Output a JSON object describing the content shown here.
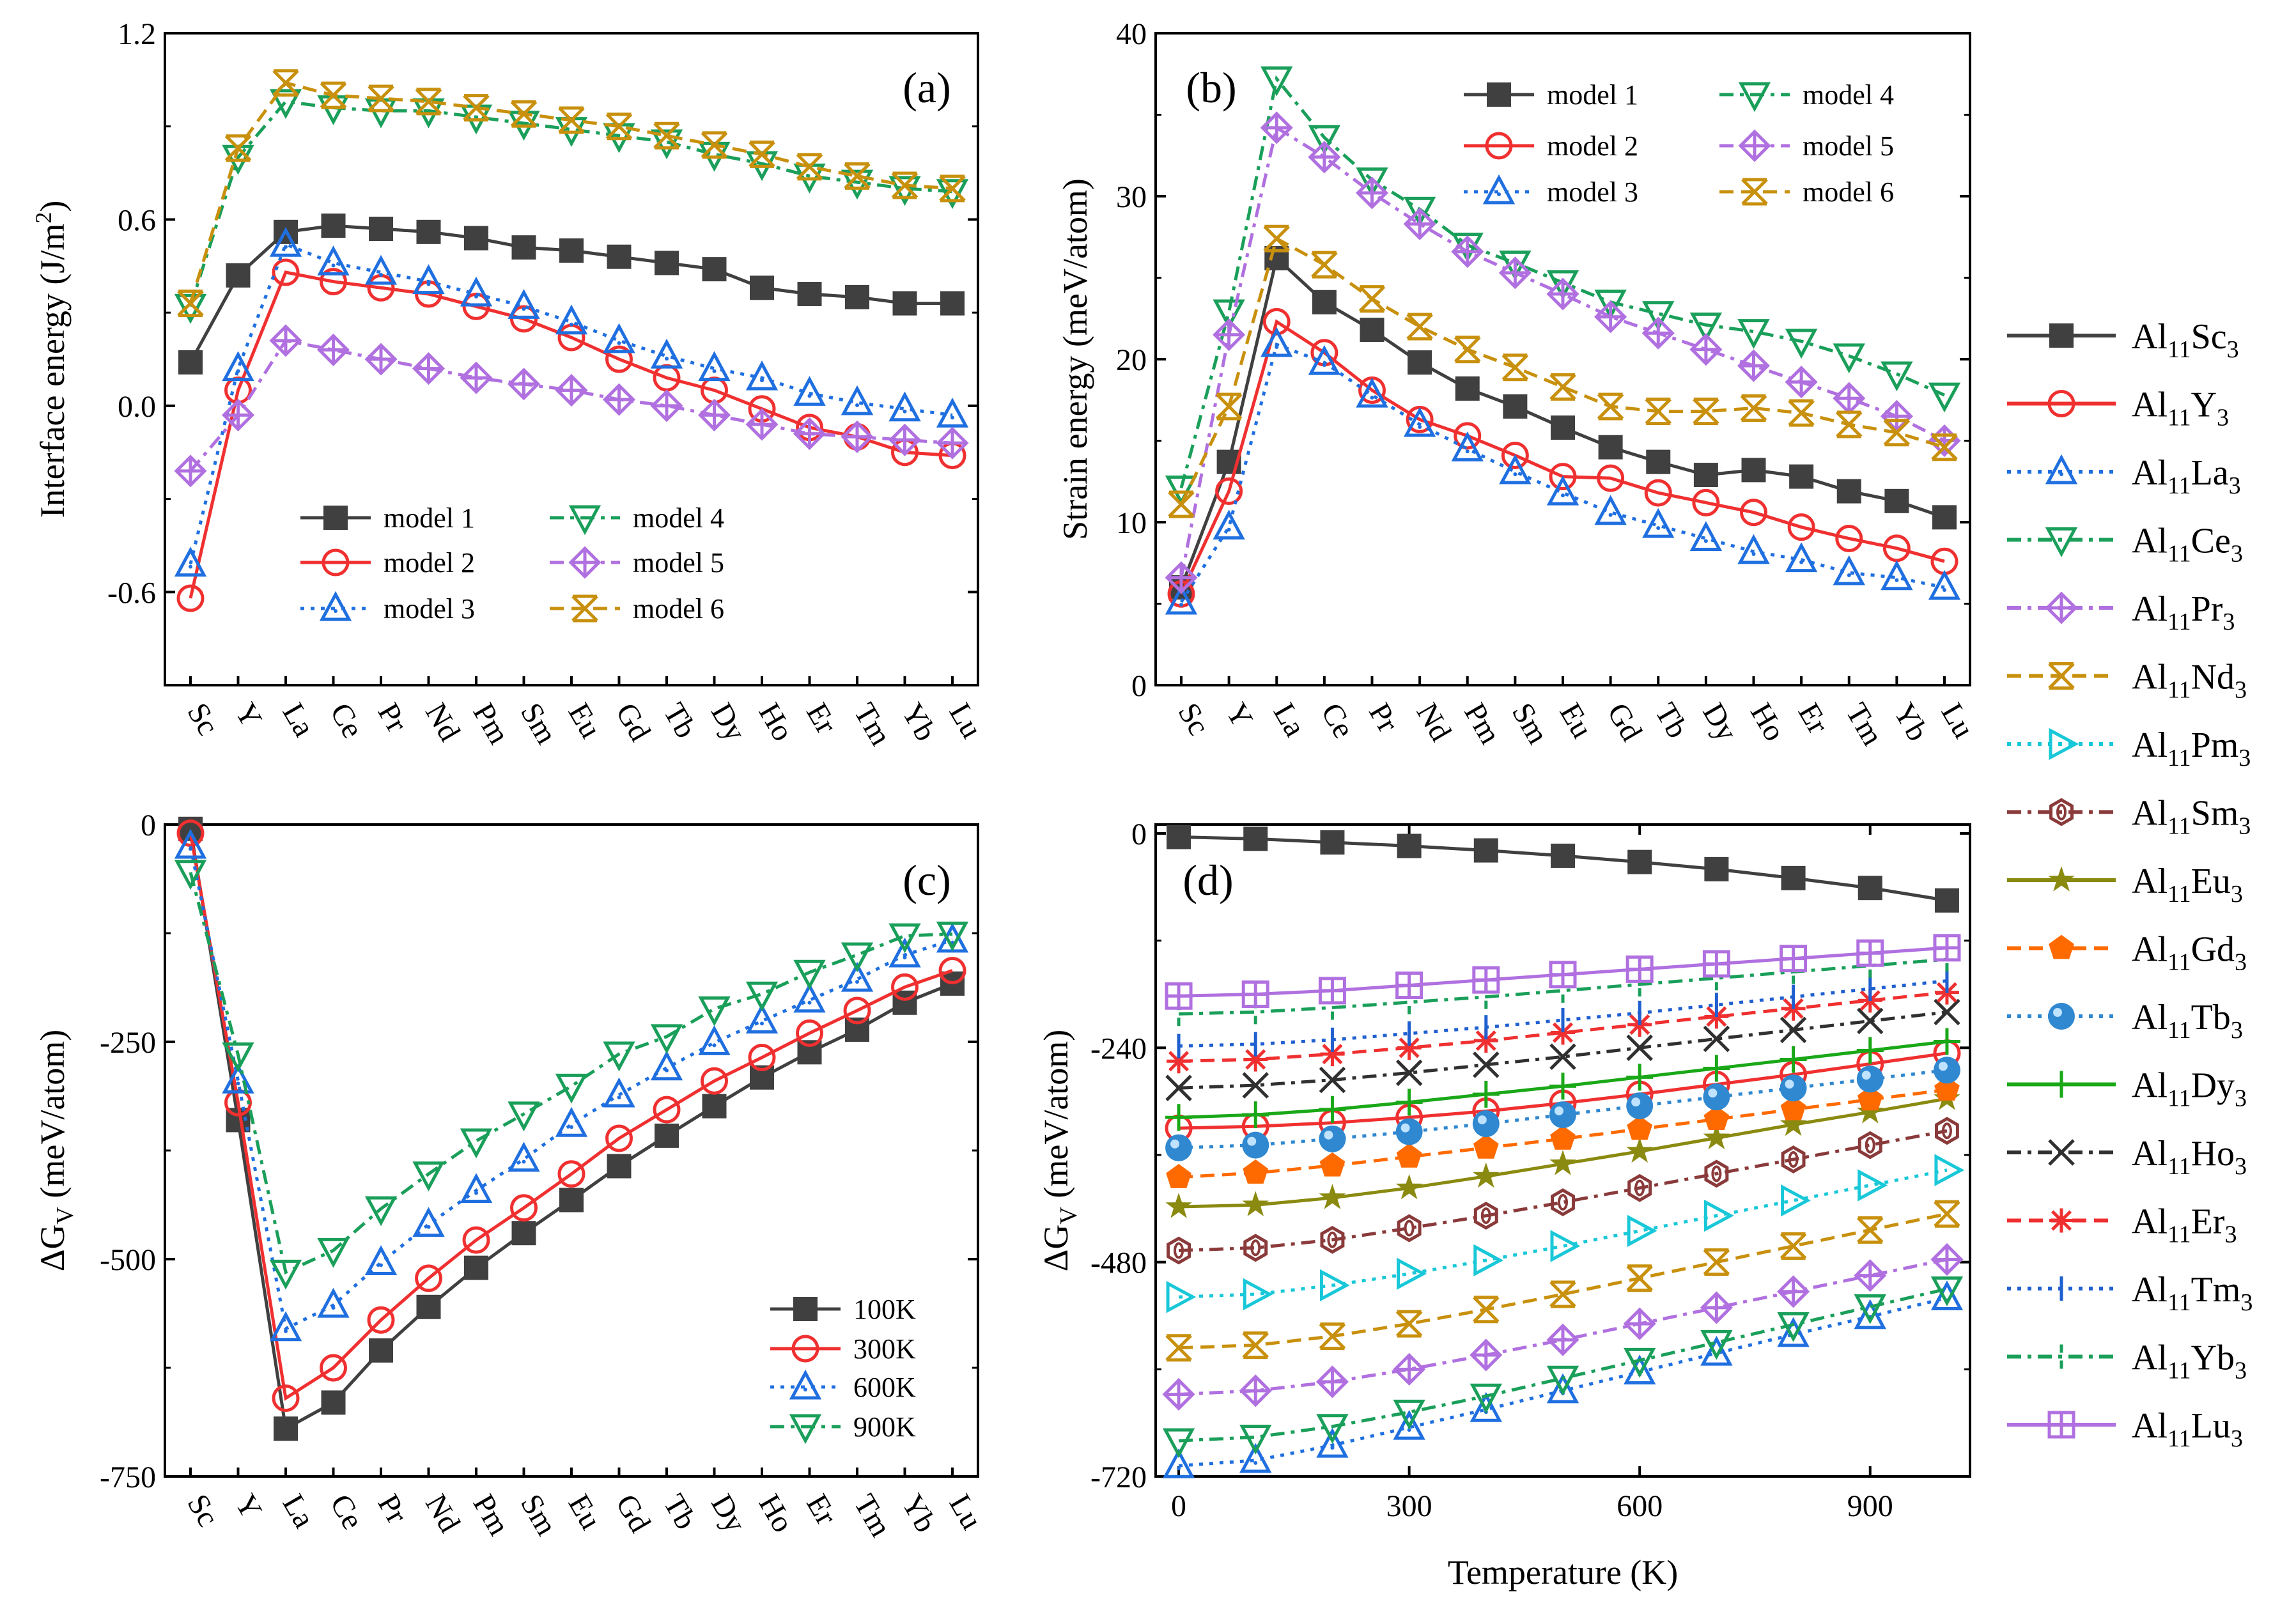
{
  "colors": {
    "model1": "#404040",
    "model2": "#f03030",
    "model3": "#1f6fe0",
    "model4": "#1a9f5a",
    "model5": "#b070e0",
    "model6": "#c8900c"
  },
  "chart_data": [
    {
      "type": "line",
      "panel_label": "(a)",
      "ylabel": "Interface energy (J/m²)",
      "xlabel": "",
      "categories": [
        "Sc",
        "Y",
        "La",
        "Ce",
        "Pr",
        "Nd",
        "Pm",
        "Sm",
        "Eu",
        "Gd",
        "Tb",
        "Dy",
        "Ho",
        "Er",
        "Tm",
        "Yb",
        "Lu"
      ],
      "ylim": [
        -0.9,
        1.2
      ],
      "yticks": [
        "-0.6",
        "0.0",
        "0.6",
        "1.2"
      ],
      "legend_position": "bottom-center",
      "series": [
        {
          "name": "model 1",
          "values": [
            0.14,
            0.42,
            0.56,
            0.58,
            0.57,
            0.56,
            0.54,
            0.51,
            0.5,
            0.48,
            0.46,
            0.44,
            0.38,
            0.36,
            0.35,
            0.33,
            0.33
          ]
        },
        {
          "name": "model 2",
          "values": [
            -0.62,
            0.05,
            0.43,
            0.4,
            0.38,
            0.36,
            0.32,
            0.28,
            0.22,
            0.15,
            0.09,
            0.05,
            -0.01,
            -0.07,
            -0.1,
            -0.15,
            -0.16
          ]
        },
        {
          "name": "model 3",
          "values": [
            -0.51,
            0.12,
            0.52,
            0.46,
            0.43,
            0.4,
            0.36,
            0.32,
            0.27,
            0.21,
            0.16,
            0.12,
            0.09,
            0.04,
            0.01,
            -0.01,
            -0.03
          ]
        },
        {
          "name": "model 4",
          "values": [
            0.32,
            0.8,
            0.98,
            0.96,
            0.95,
            0.95,
            0.93,
            0.91,
            0.89,
            0.87,
            0.85,
            0.81,
            0.78,
            0.74,
            0.72,
            0.7,
            0.69
          ]
        },
        {
          "name": "model 5",
          "values": [
            -0.21,
            -0.03,
            0.21,
            0.18,
            0.15,
            0.12,
            0.09,
            0.07,
            0.05,
            0.02,
            0.0,
            -0.03,
            -0.06,
            -0.09,
            -0.1,
            -0.11,
            -0.12
          ]
        },
        {
          "name": "model 6",
          "values": [
            0.33,
            0.83,
            1.04,
            1.0,
            0.99,
            0.98,
            0.96,
            0.94,
            0.92,
            0.9,
            0.87,
            0.84,
            0.81,
            0.77,
            0.74,
            0.71,
            0.7
          ]
        }
      ]
    },
    {
      "type": "line",
      "panel_label": "(b)",
      "ylabel": "Strain energy (meV/atom)",
      "xlabel": "",
      "categories": [
        "Sc",
        "Y",
        "La",
        "Ce",
        "Pr",
        "Nd",
        "Pm",
        "Sm",
        "Eu",
        "Gd",
        "Tb",
        "Dy",
        "Ho",
        "Er",
        "Tm",
        "Yb",
        "Lu"
      ],
      "ylim": [
        0,
        40
      ],
      "yticks": [
        "0",
        "10",
        "20",
        "30",
        "40"
      ],
      "legend_position": "top-right",
      "series": [
        {
          "name": "model 1",
          "values": [
            6.0,
            13.7,
            26.2,
            23.5,
            21.8,
            19.8,
            18.2,
            17.1,
            15.8,
            14.6,
            13.7,
            12.9,
            13.2,
            12.8,
            11.9,
            11.3,
            10.3
          ]
        },
        {
          "name": "model 2",
          "values": [
            5.6,
            11.9,
            22.3,
            20.4,
            18.1,
            16.3,
            15.3,
            14.1,
            12.8,
            12.7,
            11.8,
            11.2,
            10.6,
            9.7,
            9.0,
            8.4,
            7.6
          ]
        },
        {
          "name": "model 3",
          "values": [
            5.1,
            9.7,
            20.9,
            19.8,
            17.8,
            16.0,
            14.5,
            13.1,
            11.8,
            10.6,
            9.8,
            9.0,
            8.2,
            7.7,
            6.9,
            6.6,
            6.0
          ]
        },
        {
          "name": "model 4",
          "values": [
            12.1,
            22.9,
            37.2,
            33.6,
            31.0,
            29.2,
            27.0,
            25.9,
            24.7,
            23.5,
            22.8,
            22.1,
            21.7,
            21.1,
            20.2,
            19.1,
            17.8
          ]
        },
        {
          "name": "model 5",
          "values": [
            6.6,
            21.5,
            34.2,
            32.4,
            30.2,
            28.3,
            26.6,
            25.3,
            24.0,
            22.6,
            21.6,
            20.6,
            19.6,
            18.6,
            17.6,
            16.5,
            15.0
          ]
        },
        {
          "name": "model 6",
          "values": [
            11.1,
            17.1,
            27.4,
            25.8,
            23.7,
            22.0,
            20.6,
            19.5,
            18.3,
            17.1,
            16.8,
            16.8,
            17.0,
            16.7,
            16.0,
            15.5,
            14.6
          ]
        }
      ]
    },
    {
      "type": "line",
      "panel_label": "(c)",
      "ylabel": "ΔGV (meV/atom)",
      "ylabel_main": "ΔG",
      "ylabel_sub": "V",
      "ylabel_rest": " (meV/atom)",
      "xlabel": "",
      "categories": [
        "Sc",
        "Y",
        "La",
        "Ce",
        "Pr",
        "Nd",
        "Pm",
        "Sm",
        "Eu",
        "Gd",
        "Tb",
        "Dy",
        "Ho",
        "Er",
        "Tm",
        "Yb",
        "Lu"
      ],
      "ylim": [
        -750,
        0
      ],
      "yticks": [
        "0",
        "-250",
        "-500",
        "-750"
      ],
      "legend_position": "bottom-right",
      "series": [
        {
          "name": "100K",
          "values": [
            -5,
            -340,
            -695,
            -665,
            -605,
            -555,
            -510,
            -470,
            -432,
            -393,
            -358,
            -324,
            -291,
            -262,
            -236,
            -205,
            -183
          ]
        },
        {
          "name": "300K",
          "values": [
            -10,
            -320,
            -660,
            -625,
            -570,
            -522,
            -478,
            -441,
            -402,
            -361,
            -328,
            -295,
            -268,
            -240,
            -214,
            -187,
            -168
          ]
        },
        {
          "name": "600K",
          "values": [
            -25,
            -295,
            -580,
            -553,
            -504,
            -460,
            -421,
            -385,
            -345,
            -311,
            -280,
            -251,
            -226,
            -202,
            -178,
            -150,
            -133
          ]
        },
        {
          "name": "900K",
          "values": [
            -55,
            -265,
            -515,
            -490,
            -442,
            -402,
            -364,
            -333,
            -301,
            -264,
            -244,
            -212,
            -195,
            -170,
            -150,
            -128,
            -126
          ]
        }
      ]
    },
    {
      "type": "line",
      "panel_label": "(d)",
      "ylabel": "ΔGV (meV/atom)",
      "ylabel_main": "ΔG",
      "ylabel_sub": "V",
      "ylabel_rest": " (meV/atom)",
      "xlabel": "Temperature (K)",
      "x": [
        0,
        100,
        200,
        300,
        400,
        500,
        600,
        700,
        800,
        900,
        1000
      ],
      "xlim": [
        -30,
        1030
      ],
      "xticks": [
        "0",
        "300",
        "600",
        "900"
      ],
      "ylim": [
        -720,
        10
      ],
      "yticks": [
        "0",
        "-240",
        "-480",
        "-720"
      ],
      "legend_position": "right-outside",
      "series": [
        {
          "name": "Al11Sc3",
          "label_main": "Al",
          "label_sub1": "11",
          "label_el": "Sc",
          "label_sub2": "3",
          "values": [
            -4,
            -6,
            -10,
            -14,
            -19,
            -25,
            -32,
            -40,
            -50,
            -61,
            -75
          ]
        },
        {
          "name": "Al11Y3",
          "label_main": "Al",
          "label_sub1": "11",
          "label_el": "Y",
          "label_sub2": "3",
          "values": [
            -330,
            -328,
            -324,
            -318,
            -311,
            -302,
            -292,
            -281,
            -270,
            -258,
            -246
          ]
        },
        {
          "name": "Al11La3",
          "label_main": "Al",
          "label_sub1": "11",
          "label_el": "La",
          "label_sub2": "3",
          "values": [
            -708,
            -702,
            -685,
            -665,
            -645,
            -624,
            -603,
            -582,
            -561,
            -541,
            -520
          ]
        },
        {
          "name": "Al11Ce3",
          "label_main": "Al",
          "label_sub1": "11",
          "label_el": "Ce",
          "label_sub2": "3",
          "values": [
            -680,
            -676,
            -664,
            -648,
            -630,
            -610,
            -590,
            -570,
            -550,
            -530,
            -510
          ]
        },
        {
          "name": "Al11Pr3",
          "label_main": "Al",
          "label_sub1": "11",
          "label_el": "Pr",
          "label_sub2": "3",
          "values": [
            -628,
            -624,
            -614,
            -600,
            -584,
            -567,
            -549,
            -531,
            -513,
            -495,
            -477
          ]
        },
        {
          "name": "Al11Nd3",
          "label_main": "Al",
          "label_sub1": "11",
          "label_el": "Nd",
          "label_sub2": "3",
          "values": [
            -576,
            -573,
            -563,
            -549,
            -533,
            -516,
            -498,
            -480,
            -462,
            -444,
            -426
          ]
        },
        {
          "name": "Al11Pm3",
          "label_main": "Al",
          "label_sub1": "11",
          "label_el": "Pm",
          "label_sub2": "3",
          "values": [
            -519,
            -516,
            -506,
            -493,
            -478,
            -462,
            -445,
            -428,
            -411,
            -394,
            -377
          ]
        },
        {
          "name": "Al11Sm3",
          "label_main": "Al",
          "label_sub1": "11",
          "label_el": "Sm",
          "label_sub2": "3",
          "values": [
            -467,
            -464,
            -455,
            -442,
            -428,
            -413,
            -397,
            -381,
            -365,
            -349,
            -333
          ]
        },
        {
          "name": "Al11Eu3",
          "label_main": "Al",
          "label_sub1": "11",
          "label_el": "Eu",
          "label_sub2": "3",
          "values": [
            -418,
            -416,
            -408,
            -397,
            -384,
            -370,
            -356,
            -341,
            -326,
            -312,
            -297
          ]
        },
        {
          "name": "Al11Gd3",
          "label_main": "Al",
          "label_sub1": "11",
          "label_el": "Gd",
          "label_sub2": "3",
          "values": [
            -385,
            -380,
            -372,
            -362,
            -352,
            -342,
            -331,
            -320,
            -309,
            -298,
            -287
          ]
        },
        {
          "name": "Al11Tb3",
          "label_main": "Al",
          "label_sub1": "11",
          "label_el": "Tb",
          "label_sub2": "3",
          "values": [
            -352,
            -349,
            -342,
            -334,
            -325,
            -315,
            -305,
            -295,
            -285,
            -275,
            -265
          ]
        },
        {
          "name": "Al11Dy3",
          "label_main": "Al",
          "label_sub1": "11",
          "label_el": "Dy",
          "label_sub2": "3",
          "values": [
            -318,
            -315,
            -309,
            -301,
            -292,
            -283,
            -273,
            -263,
            -253,
            -243,
            -233
          ]
        },
        {
          "name": "Al11Ho3",
          "label_main": "Al",
          "label_sub1": "11",
          "label_el": "Ho",
          "label_sub2": "3",
          "values": [
            -285,
            -282,
            -276,
            -268,
            -259,
            -250,
            -240,
            -230,
            -220,
            -210,
            -200
          ]
        },
        {
          "name": "Al11Er3",
          "label_main": "Al",
          "label_sub1": "11",
          "label_el": "Er",
          "label_sub2": "3",
          "values": [
            -255,
            -253,
            -247,
            -240,
            -232,
            -223,
            -214,
            -205,
            -196,
            -187,
            -178
          ]
        },
        {
          "name": "Al11Tm3",
          "label_main": "Al",
          "label_sub1": "11",
          "label_el": "Tm",
          "label_sub2": "3",
          "values": [
            -238,
            -236,
            -231,
            -224,
            -217,
            -209,
            -201,
            -192,
            -183,
            -174,
            -165
          ]
        },
        {
          "name": "Al11Yb3",
          "label_main": "Al",
          "label_sub1": "11",
          "label_el": "Yb",
          "label_sub2": "3",
          "values": [
            -202,
            -200,
            -195,
            -189,
            -183,
            -176,
            -169,
            -162,
            -155,
            -148,
            -141
          ]
        },
        {
          "name": "Al11Lu3",
          "label_main": "Al",
          "label_sub1": "11",
          "label_el": "Lu",
          "label_sub2": "3",
          "values": [
            -182,
            -180,
            -176,
            -170,
            -164,
            -158,
            -152,
            -146,
            -140,
            -134,
            -128
          ]
        }
      ]
    }
  ]
}
